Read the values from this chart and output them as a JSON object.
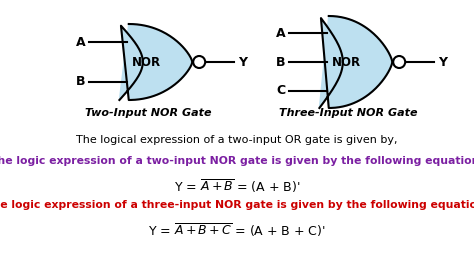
{
  "bg_color": "#ffffff",
  "gate_fill": "#bde0f0",
  "gate_edge": "#000000",
  "line_color": "#000000",
  "label_color": "#000000",
  "purple_color": "#7b1fa2",
  "red_color": "#cc0000",
  "text_color": "#000000",
  "caption1": "Two-Input NOR Gate",
  "caption2": "Three-Input NOR Gate",
  "mid_text": "The logical expression of a two-input OR gate is given by,",
  "purple_text": "The logic expression of a two-input NOR gate is given by the following equation:",
  "red_text": "The logic expression of a three-input NOR gate is given by the following equation:"
}
